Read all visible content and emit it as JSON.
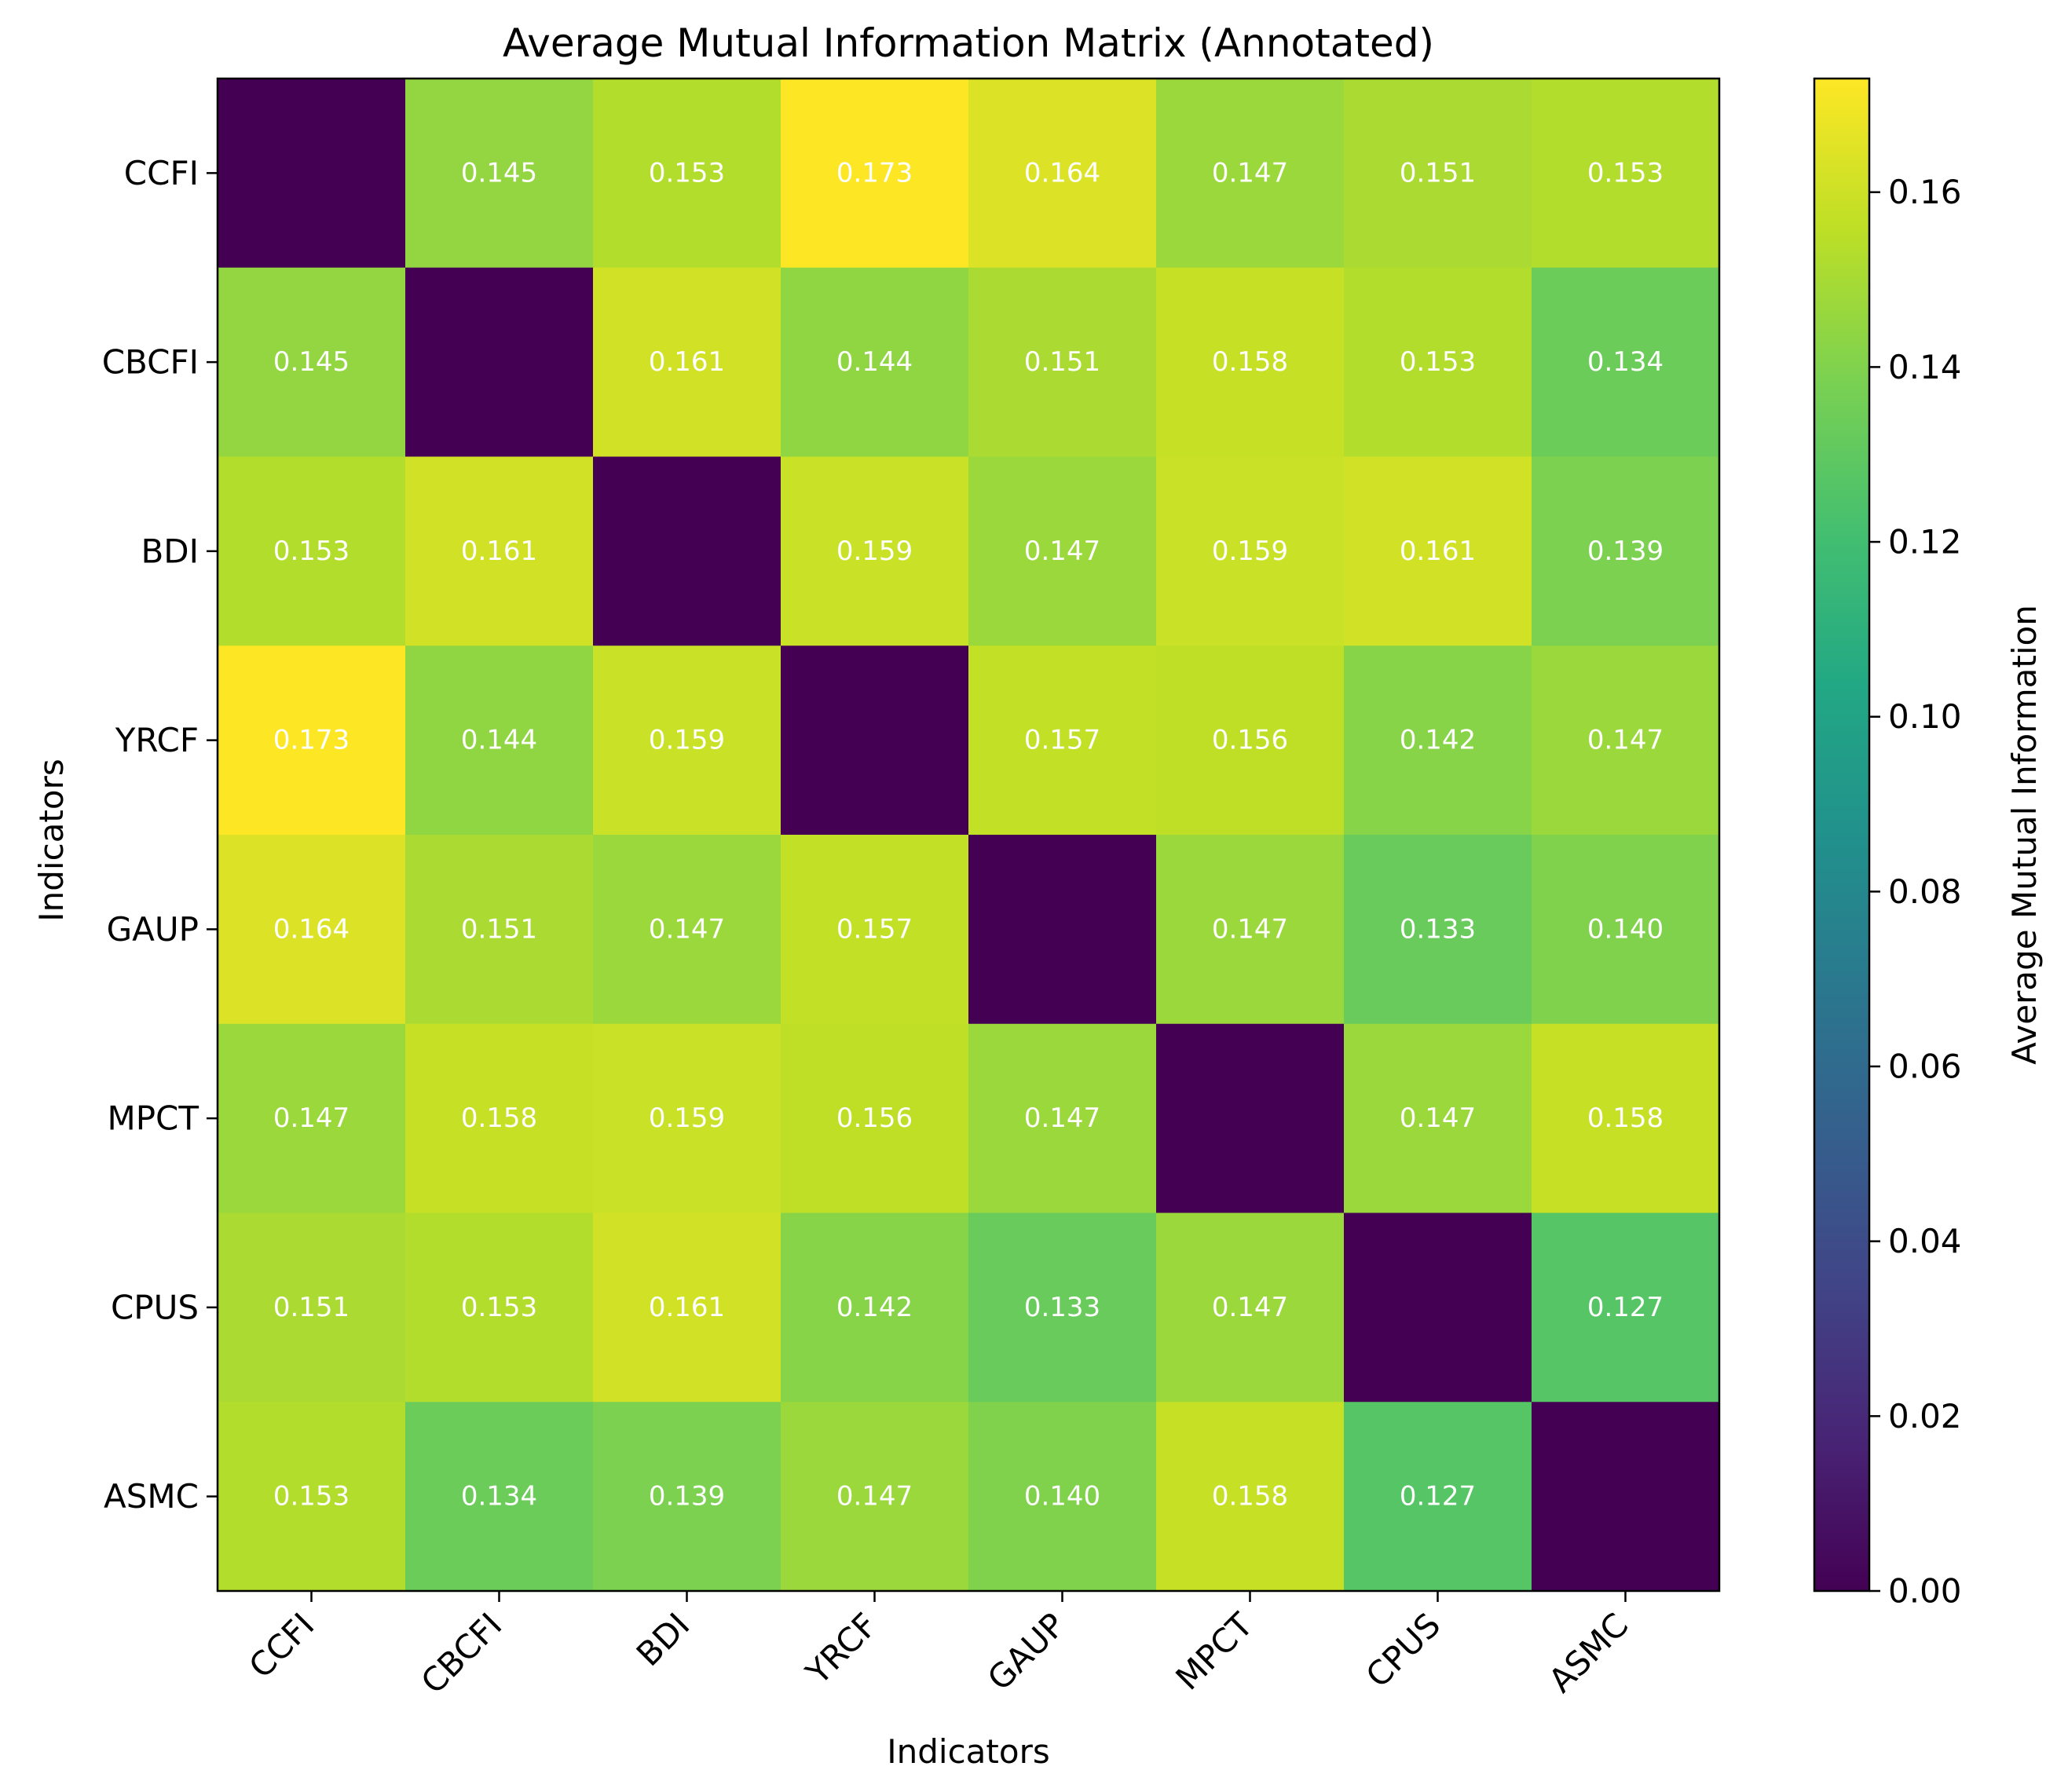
{
  "chart_data": {
    "type": "heatmap",
    "title": "Average Mutual Information Matrix (Annotated)",
    "xlabel": "Indicators",
    "ylabel": "Indicators",
    "colorbar_label": "Average Mutual Information",
    "colormap": "viridis",
    "categories": [
      "CCFI",
      "CBCFI",
      "BDI",
      "YRCF",
      "GAUP",
      "MPCT",
      "CPUS",
      "ASMC"
    ],
    "values": [
      [
        0.0,
        0.145,
        0.153,
        0.173,
        0.164,
        0.147,
        0.151,
        0.153
      ],
      [
        0.145,
        0.0,
        0.161,
        0.144,
        0.151,
        0.158,
        0.153,
        0.134
      ],
      [
        0.153,
        0.161,
        0.0,
        0.159,
        0.147,
        0.159,
        0.161,
        0.139
      ],
      [
        0.173,
        0.144,
        0.159,
        0.0,
        0.157,
        0.156,
        0.142,
        0.147
      ],
      [
        0.164,
        0.151,
        0.147,
        0.157,
        0.0,
        0.147,
        0.133,
        0.14
      ],
      [
        0.147,
        0.158,
        0.159,
        0.156,
        0.147,
        0.0,
        0.147,
        0.158
      ],
      [
        0.151,
        0.153,
        0.161,
        0.142,
        0.133,
        0.147,
        0.0,
        0.127
      ],
      [
        0.153,
        0.134,
        0.139,
        0.147,
        0.14,
        0.158,
        0.127,
        0.0
      ]
    ],
    "annotations": [
      [
        "",
        "0.145",
        "0.153",
        "0.173",
        "0.164",
        "0.147",
        "0.151",
        "0.153"
      ],
      [
        "0.145",
        "",
        "0.161",
        "0.144",
        "0.151",
        "0.158",
        "0.153",
        "0.134"
      ],
      [
        "0.153",
        "0.161",
        "",
        "0.159",
        "0.147",
        "0.159",
        "0.161",
        "0.139"
      ],
      [
        "0.173",
        "0.144",
        "0.159",
        "",
        "0.157",
        "0.156",
        "0.142",
        "0.147"
      ],
      [
        "0.164",
        "0.151",
        "0.147",
        "0.157",
        "",
        "0.147",
        "0.133",
        "0.140"
      ],
      [
        "0.147",
        "0.158",
        "0.159",
        "0.156",
        "0.147",
        "",
        "0.147",
        "0.158"
      ],
      [
        "0.151",
        "0.153",
        "0.161",
        "0.142",
        "0.133",
        "0.147",
        "",
        "0.127"
      ],
      [
        "0.153",
        "0.134",
        "0.139",
        "0.147",
        "0.140",
        "0.158",
        "0.127",
        ""
      ]
    ],
    "vmin": 0.0,
    "vmax": 0.173,
    "colorbar_ticks": [
      "0.00",
      "0.02",
      "0.04",
      "0.06",
      "0.08",
      "0.10",
      "0.12",
      "0.14",
      "0.16"
    ],
    "annotation_color": "#ffffff",
    "grid": false
  }
}
